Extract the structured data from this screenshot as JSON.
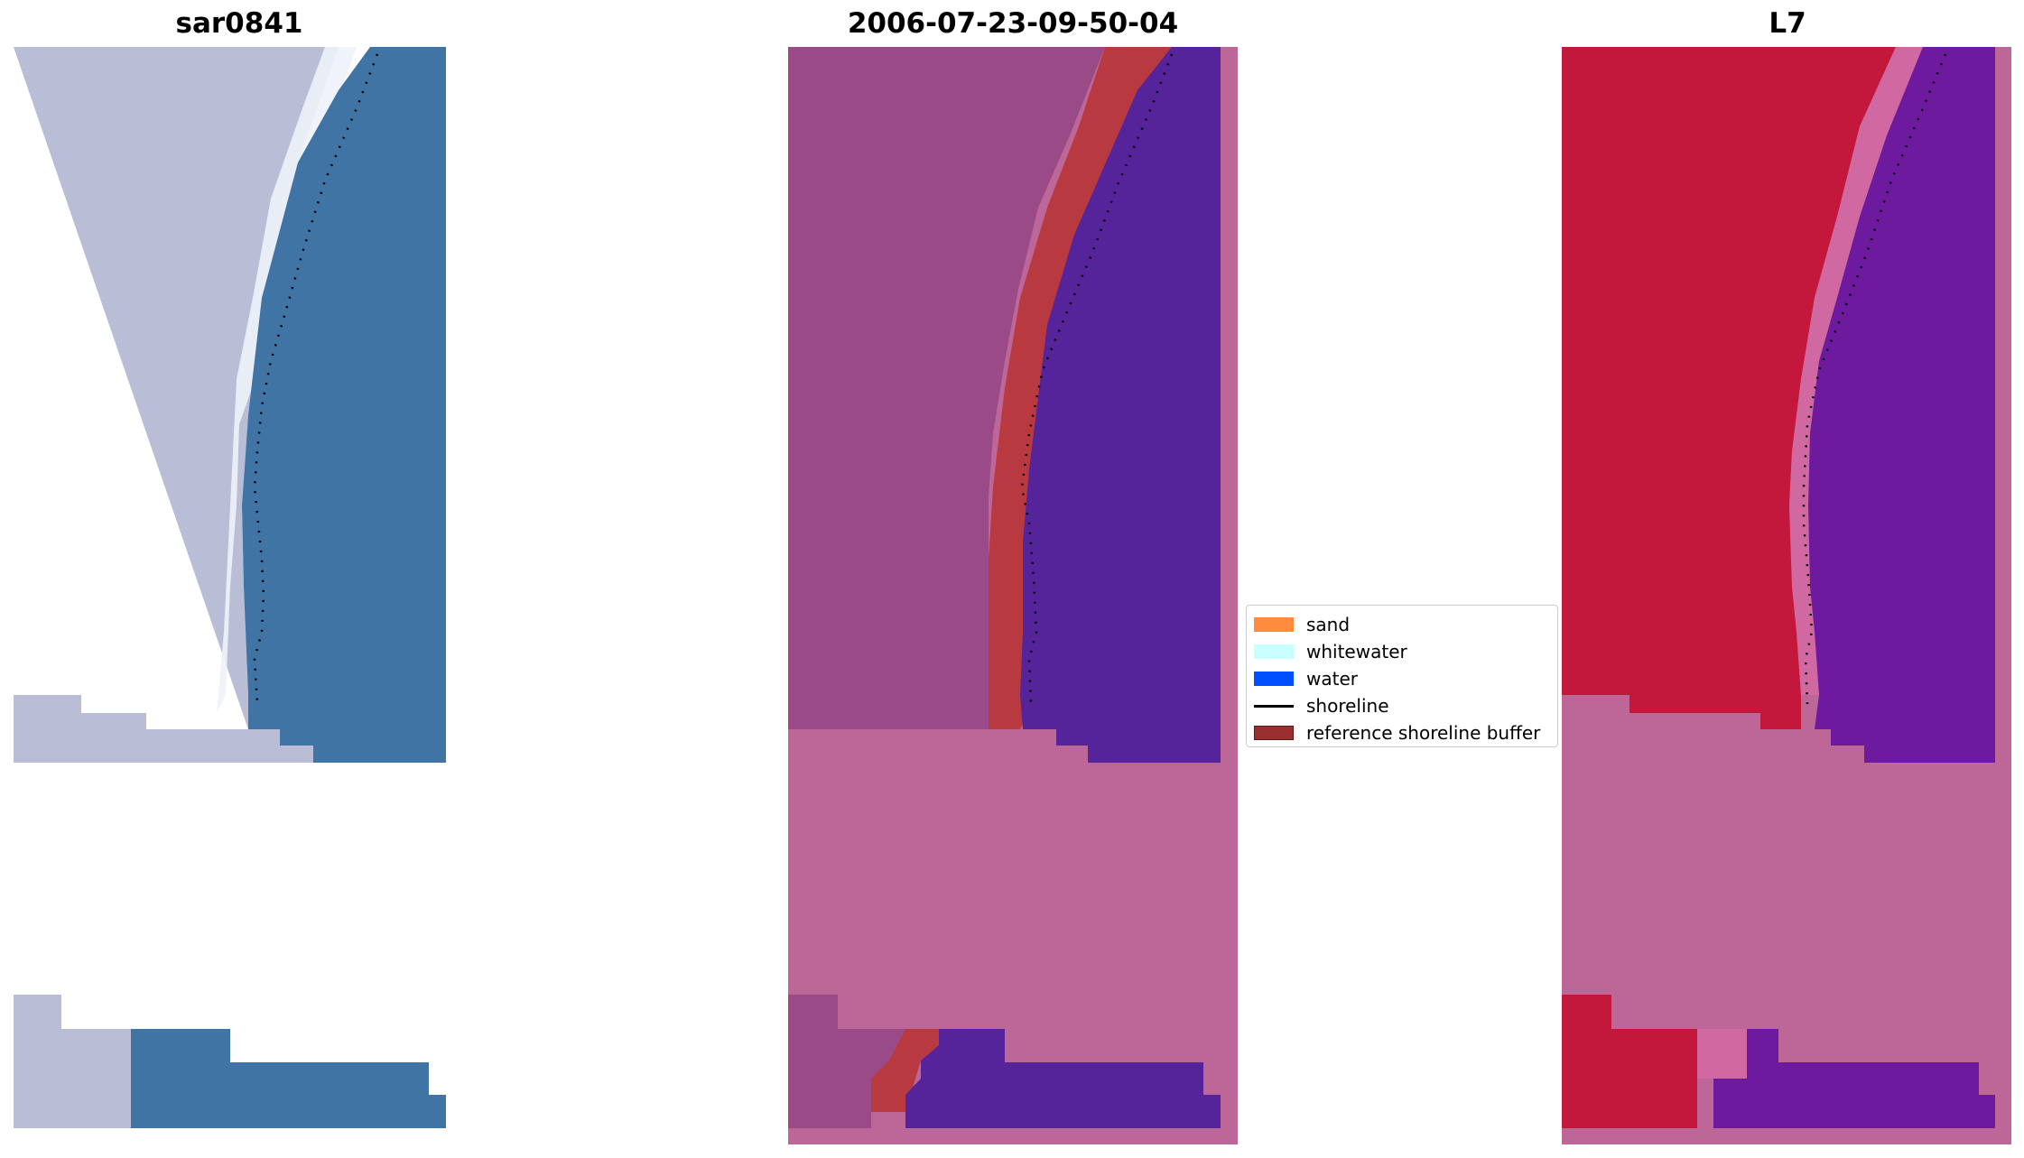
{
  "panels": [
    {
      "title": "sar0841"
    },
    {
      "title": "2006-07-23-09-50-04"
    },
    {
      "title": "L7"
    }
  ],
  "legend": {
    "items": [
      {
        "label": "sand",
        "color": "#ff8c3c",
        "kind": "patch"
      },
      {
        "label": "whitewater",
        "color": "#c8ffff",
        "kind": "patch"
      },
      {
        "label": "water",
        "color": "#0050ff",
        "kind": "patch"
      },
      {
        "label": "shoreline",
        "color": "#000000",
        "kind": "line"
      },
      {
        "label": "reference shoreline buffer",
        "color": "#9a2f2f",
        "kind": "patch"
      }
    ]
  },
  "colors": {
    "rgb_land": "#b9bed6",
    "rgb_white": "#eef2f8",
    "rgb_water": "#3f74a4",
    "class_land": "#9a4a86",
    "class_buffer": "#b8393f",
    "class_water": "#55239a",
    "nodata_pink": "#bc6797",
    "ndwi_land": "#c3173c",
    "ndwi_transition": "#d46aa2",
    "ndwi_water": "#6e1a9e"
  }
}
